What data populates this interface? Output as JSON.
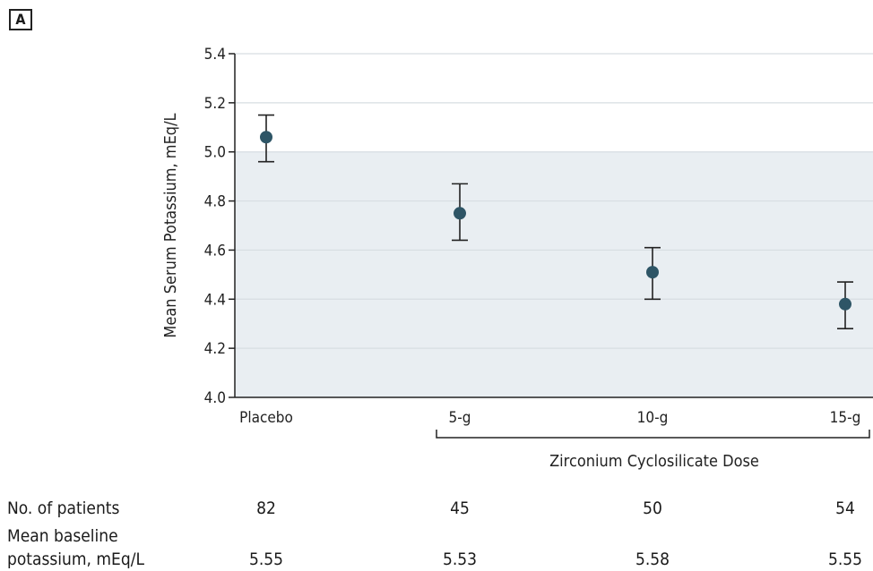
{
  "panel_label": "A",
  "chart_data": {
    "type": "scatter",
    "categories": [
      "Placebo",
      "5-g",
      "10-g",
      "15-g"
    ],
    "series": [
      {
        "values": [
          5.06,
          4.75,
          4.51,
          4.38
        ],
        "ci_lower": [
          4.96,
          4.64,
          4.4,
          4.28
        ],
        "ci_upper": [
          5.15,
          4.87,
          4.61,
          4.47
        ]
      }
    ],
    "ylabel": "Mean Serum Potassium, mEq/L",
    "xgroup_label": "Zirconium Cyclosilicate Dose",
    "ylim": [
      4.0,
      5.4
    ],
    "yticks": [
      "4.0",
      "4.2",
      "4.4",
      "4.6",
      "4.8",
      "5.0",
      "5.2",
      "5.4"
    ],
    "shaded_band": [
      4.0,
      5.0
    ],
    "grid": true,
    "colors": {
      "point": "#2e5566",
      "band": "#e9eef2",
      "grid": "#d7dde2"
    }
  },
  "table": {
    "patients_label": "No. of patients",
    "patients": [
      "82",
      "45",
      "50",
      "54"
    ],
    "baseline_label_line1": "Mean baseline",
    "baseline_label_line2": "potassium, mEq/L",
    "baseline": [
      "5.55",
      "5.53",
      "5.58",
      "5.55"
    ]
  }
}
